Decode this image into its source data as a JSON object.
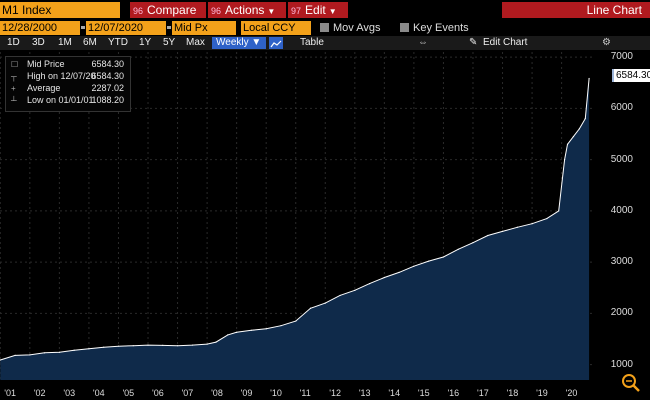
{
  "toolbar": {
    "ticker": "M1 Index",
    "compare": {
      "num": "96",
      "label": "Compare"
    },
    "actions": {
      "num": "96",
      "label": "Actions"
    },
    "edit": {
      "num": "97",
      "label": "Edit"
    },
    "view_title": "Line Chart"
  },
  "settings": {
    "start_date": "12/28/2000",
    "end_date": "12/07/2020",
    "field": "Mid Px",
    "currency": "Local CCY",
    "mov_avgs": "Mov Avgs",
    "key_events": "Key Events"
  },
  "periods": [
    "1D",
    "3D",
    "1M",
    "6M",
    "YTD",
    "1Y",
    "5Y",
    "Max"
  ],
  "frequency": "Weekly",
  "table_label": "Table",
  "edit_chart_label": "Edit Chart",
  "legend": {
    "rows": [
      {
        "k": "Mid Price",
        "v": "6584.30"
      },
      {
        "k": "High on 12/07/20",
        "v": "6584.30"
      },
      {
        "k": "Average",
        "v": "2287.02"
      },
      {
        "k": "Low on 01/01/01",
        "v": "1088.20"
      }
    ]
  },
  "last_price": "6584.30",
  "colors": {
    "accent": "#f3a11a",
    "menu": "#b01a1f",
    "line": "#ffffff",
    "fill": "#0f2a4a"
  },
  "chart_data": {
    "type": "area",
    "x": [
      2001,
      2001.5,
      2002,
      2002.5,
      2003,
      2003.5,
      2004,
      2004.5,
      2005,
      2005.5,
      2006,
      2006.5,
      2007,
      2007.5,
      2008,
      2008.3,
      2008.7,
      2009,
      2009.5,
      2010,
      2010.5,
      2011,
      2011.5,
      2012,
      2012.5,
      2013,
      2013.5,
      2014,
      2014.5,
      2015,
      2015.5,
      2016,
      2016.5,
      2017,
      2017.5,
      2018,
      2018.5,
      2019,
      2019.5,
      2019.9,
      2020.1,
      2020.2,
      2020.4,
      2020.6,
      2020.8,
      2020.93
    ],
    "values": [
      1090,
      1180,
      1190,
      1230,
      1240,
      1280,
      1310,
      1340,
      1360,
      1370,
      1380,
      1375,
      1370,
      1380,
      1400,
      1440,
      1580,
      1630,
      1670,
      1700,
      1760,
      1850,
      2100,
      2200,
      2350,
      2450,
      2580,
      2700,
      2800,
      2920,
      3020,
      3100,
      3250,
      3380,
      3520,
      3600,
      3680,
      3750,
      3850,
      4000,
      5000,
      5300,
      5450,
      5600,
      5800,
      6584
    ],
    "x_ticks": [
      "'01",
      "'02",
      "'03",
      "'04",
      "'05",
      "'06",
      "'07",
      "'08",
      "'09",
      "'10",
      "'11",
      "'12",
      "'13",
      "'14",
      "'15",
      "'16",
      "'17",
      "'18",
      "'19",
      "'20"
    ],
    "y_ticks": [
      "1000",
      "2000",
      "3000",
      "4000",
      "5000",
      "6000",
      "7000"
    ],
    "ylim": [
      700,
      7100
    ],
    "xlim": [
      2000.99,
      2021.13
    ],
    "grid": true
  }
}
